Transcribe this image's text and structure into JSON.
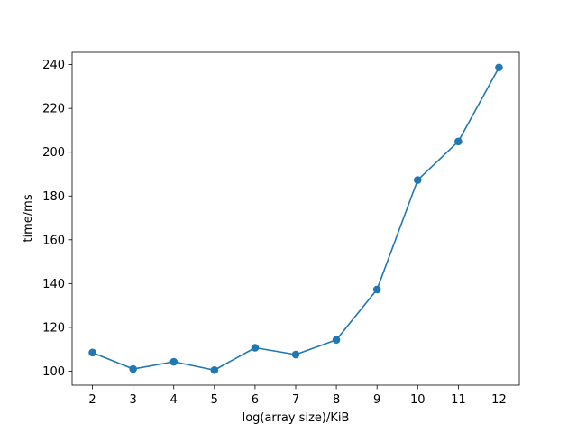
{
  "chart_data": {
    "type": "line",
    "title": "",
    "xlabel": "log(array size)/KiB",
    "ylabel": "time/ms",
    "x": [
      2,
      3,
      4,
      5,
      6,
      7,
      8,
      9,
      10,
      11,
      12
    ],
    "series": [
      {
        "values": [
          108.5,
          101.0,
          104.3,
          100.5,
          110.7,
          107.6,
          114.3,
          137.3,
          187.3,
          204.9,
          238.7
        ],
        "color": "#1f77b4",
        "marker": "circle"
      }
    ],
    "xticks": [
      2,
      3,
      4,
      5,
      6,
      7,
      8,
      9,
      10,
      11,
      12
    ],
    "yticks": [
      100,
      120,
      140,
      160,
      180,
      200,
      220,
      240
    ],
    "xlim": [
      1.5,
      12.5
    ],
    "ylim": [
      93.6,
      245.6
    ],
    "grid": false,
    "legend": "none"
  }
}
